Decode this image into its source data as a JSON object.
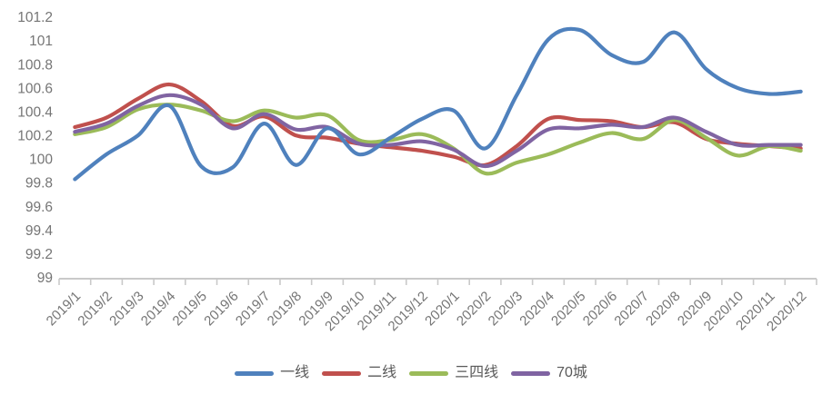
{
  "chart": {
    "title": "",
    "legend_labels": [
      "一线",
      "二线",
      "三四线",
      "70城"
    ]
  },
  "chart_data": {
    "type": "line",
    "smooth": true,
    "grid": false,
    "legend_position": "bottom",
    "x": [
      "2019/1",
      "2019/2",
      "2019/3",
      "2019/4",
      "2019/5",
      "2019/6",
      "2019/7",
      "2019/8",
      "2019/9",
      "2019/10",
      "2019/11",
      "2019/12",
      "2020/1",
      "2020/2",
      "2020/3",
      "2020/4",
      "2020/5",
      "2020/6",
      "2020/7",
      "2020/8",
      "2020/9",
      "2020/10",
      "2020/11",
      "2020/12"
    ],
    "xlabel": "",
    "ylabel": "",
    "ylim": [
      99,
      101.2
    ],
    "ytick_step": 0.2,
    "series": [
      {
        "name": "一线",
        "color": "#4F81BD",
        "values": [
          99.84,
          100.05,
          100.21,
          100.46,
          99.95,
          99.94,
          100.31,
          99.96,
          100.27,
          100.05,
          100.19,
          100.35,
          100.42,
          100.1,
          100.55,
          101.02,
          101.1,
          100.89,
          100.83,
          101.08,
          100.77,
          100.61,
          100.56,
          100.58
        ]
      },
      {
        "name": "二线",
        "color": "#C0504D",
        "values": [
          100.28,
          100.36,
          100.52,
          100.64,
          100.5,
          100.29,
          100.37,
          100.21,
          100.19,
          100.14,
          100.11,
          100.08,
          100.03,
          99.96,
          100.12,
          100.35,
          100.34,
          100.33,
          100.28,
          100.32,
          100.18,
          100.14,
          100.12,
          100.1
        ]
      },
      {
        "name": "三四线",
        "color": "#9BBB59",
        "values": [
          100.22,
          100.28,
          100.43,
          100.47,
          100.42,
          100.33,
          100.42,
          100.36,
          100.38,
          100.17,
          100.17,
          100.22,
          100.1,
          99.89,
          99.98,
          100.05,
          100.15,
          100.23,
          100.18,
          100.34,
          100.19,
          100.04,
          100.12,
          100.08
        ]
      },
      {
        "name": "70城",
        "color": "#8064A2",
        "values": [
          100.24,
          100.31,
          100.46,
          100.55,
          100.47,
          100.27,
          100.39,
          100.26,
          100.28,
          100.14,
          100.13,
          100.16,
          100.09,
          99.95,
          100.08,
          100.26,
          100.27,
          100.3,
          100.28,
          100.36,
          100.24,
          100.13,
          100.13,
          100.13
        ]
      }
    ],
    "style": {
      "axis_line_color": "#c9c9c9",
      "tick_label_color": "#757575",
      "legend_text_color": "#595959",
      "line_width": 4.2
    }
  }
}
